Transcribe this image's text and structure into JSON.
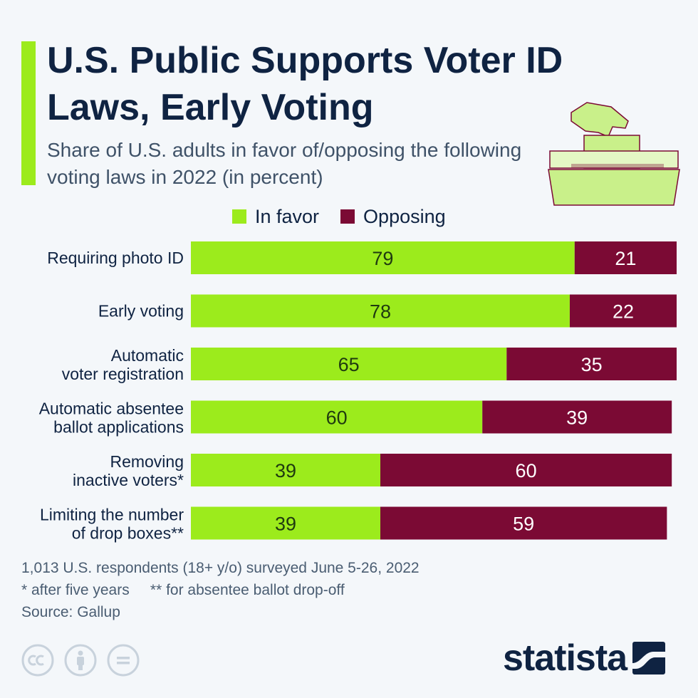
{
  "header": {
    "title": "U.S. Public Supports Voter ID Laws, Early Voting",
    "subtitle": "Share of U.S. adults in favor of/opposing the following voting laws in 2022 (in percent)"
  },
  "legend": {
    "in_favor": "In favor",
    "opposing": "Opposing"
  },
  "colors": {
    "in_favor": "#9ceb1c",
    "opposing": "#7b0a34",
    "accent": "#9ceb1c",
    "text": "#0f2342"
  },
  "chart_data": {
    "type": "bar",
    "orientation": "horizontal-stacked",
    "title": "U.S. Public Supports Voter ID Laws, Early Voting",
    "xlabel": "",
    "ylabel": "",
    "xlim": [
      0,
      100
    ],
    "categories": [
      [
        "Requiring photo ID"
      ],
      [
        "Early voting"
      ],
      [
        "Automatic",
        "voter registration"
      ],
      [
        "Automatic absentee",
        "ballot applications"
      ],
      [
        "Removing",
        "inactive voters*"
      ],
      [
        "Limiting the number",
        "of drop boxes**"
      ]
    ],
    "series": [
      {
        "name": "In favor",
        "values": [
          79,
          78,
          65,
          60,
          39,
          39
        ]
      },
      {
        "name": "Opposing",
        "values": [
          21,
          22,
          35,
          39,
          60,
          59
        ]
      }
    ]
  },
  "footnotes": {
    "survey": "1,013 U.S. respondents (18+ y/o) surveyed June 5-26, 2022",
    "notes": "* after five years     ** for absentee ballot drop-off",
    "source": "Source: Gallup"
  },
  "brand": {
    "name": "statista"
  },
  "icons": [
    "ballot-box-icon",
    "cc-icon",
    "by-icon",
    "nd-icon",
    "statista-logo-icon"
  ]
}
